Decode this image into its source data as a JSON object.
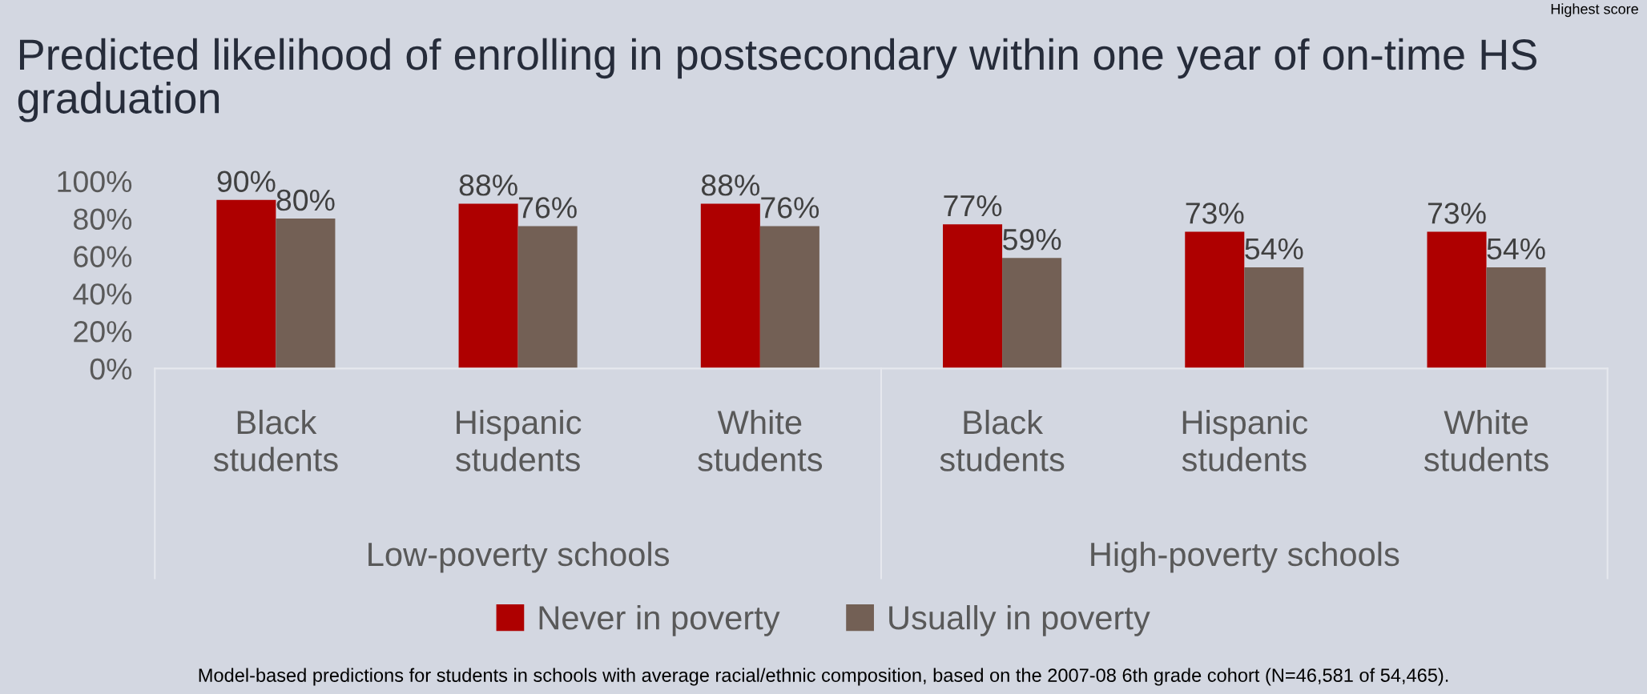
{
  "chart_data": {
    "type": "bar",
    "title": "Predicted likelihood of enrolling in postsecondary within one year of on-time HS graduation",
    "categories": [
      "Black students",
      "Hispanic students",
      "White students",
      "Black students",
      "Hispanic students",
      "White students"
    ],
    "series": [
      {
        "name": "Never in poverty",
        "color": "#ae0000",
        "values": [
          90,
          88,
          88,
          77,
          73,
          73
        ],
        "value_labels": [
          "90%",
          "88%",
          "88%",
          "77%",
          "73%",
          "73%"
        ]
      },
      {
        "name": "Usually in poverty",
        "color": "#736055",
        "values": [
          80,
          76,
          76,
          59,
          54,
          54
        ],
        "value_labels": [
          "80%",
          "76%",
          "76%",
          "59%",
          "54%",
          "54%"
        ]
      }
    ],
    "ylim": [
      0,
      100
    ],
    "yticks": [
      {
        "value": 0,
        "label": "0%"
      },
      {
        "value": 20,
        "label": "20%"
      },
      {
        "value": 40,
        "label": "40%"
      },
      {
        "value": 60,
        "label": "60%"
      },
      {
        "value": 80,
        "label": "80%"
      },
      {
        "value": 100,
        "label": "100%"
      }
    ],
    "grid": false,
    "legend": "bottom",
    "annotations": [
      "Low-poverty schools",
      "High-poverty schools",
      "Model-based predictions for students in schools with average racial/ethnic composition, based on the 2007-08 6th grade cohort (N=46,581 of 54,465).",
      "Highest score"
    ]
  }
}
